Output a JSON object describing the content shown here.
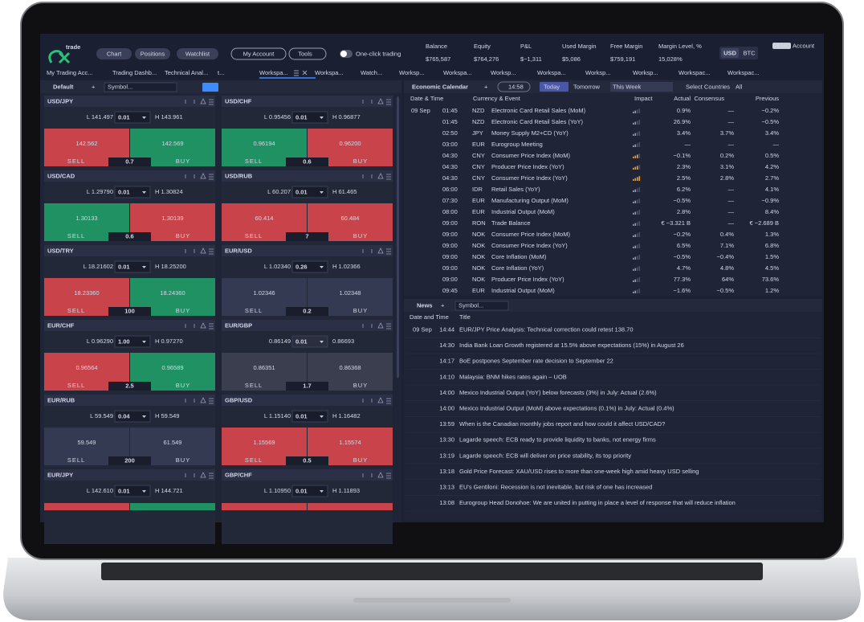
{
  "header": {
    "logo": "trade",
    "nav": [
      "Chart",
      "Positions",
      "Watchlist"
    ],
    "account_menu": "My Account",
    "tools_menu": "Tools",
    "one_click": "One-click trading",
    "stats": [
      {
        "label": "Balance",
        "value": "$765,587",
        "tone": "neutral"
      },
      {
        "label": "Equity",
        "value": "$764,276",
        "tone": "neutral"
      },
      {
        "label": "P&L",
        "value": "$−1,311",
        "tone": "negative"
      },
      {
        "label": "Used Margin",
        "value": "$5,086",
        "tone": "neutral"
      },
      {
        "label": "Free Margin",
        "value": "$759,191",
        "tone": "neutral"
      },
      {
        "label": "Margin Level, %",
        "value": "15,028%",
        "tone": "neutral"
      }
    ],
    "currencies": [
      "USD",
      "BTC"
    ],
    "demo": "DEMO",
    "account": "Account"
  },
  "tabs": [
    "My Trading Acc...",
    "Trading Dashb...",
    "Technical Anal...",
    "t...",
    "Workspa...",
    "Workspa...",
    "Watch...",
    "Worksp...",
    "Workspa...",
    "Worksp...",
    "Workspa...",
    "Worksp...",
    "Worksp...",
    "Workspac...",
    "Workspac..."
  ],
  "active_tab": 4,
  "watchlist": {
    "name": "Default",
    "search": "Symbol...",
    "sell_label": "SELL",
    "buy_label": "BUY",
    "tiles": [
      {
        "pair": "USD/JPY",
        "low": "L 141.497",
        "qty": "0.01",
        "high": "H 143.961",
        "sell": "142.562",
        "buy": "142.569",
        "spread": "0.7",
        "sell_tone": "red",
        "buy_tone": "green"
      },
      {
        "pair": "USD/CHF",
        "low": "L 0.95456",
        "qty": "0.01",
        "high": "H 0.96877",
        "sell": "0.96194",
        "buy": "0.96200",
        "spread": "0.6",
        "sell_tone": "green",
        "buy_tone": "red"
      },
      {
        "pair": "USD/CAD",
        "low": "L 1.29790",
        "qty": "0.01",
        "high": "H 1.30824",
        "sell": "1.30133",
        "buy": "1.30139",
        "spread": "0.6",
        "sell_tone": "green",
        "buy_tone": "red"
      },
      {
        "pair": "USD/RUB",
        "low": "L 60.207",
        "qty": "0.01",
        "high": "H 61.465",
        "sell": "60.414",
        "buy": "60.484",
        "spread": "7",
        "sell_tone": "red",
        "buy_tone": "red"
      },
      {
        "pair": "USD/TRY",
        "low": "L 18.21602",
        "qty": "0.01",
        "high": "H 18.25200",
        "sell": "18.23360",
        "buy": "18.24360",
        "spread": "100",
        "sell_tone": "red",
        "buy_tone": "green"
      },
      {
        "pair": "EUR/USD",
        "low": "L 1.02340",
        "qty": "0.26",
        "high": "H 1.02366",
        "sell": "1.02346",
        "buy": "1.02348",
        "spread": "0.2",
        "sell_tone": "neutral",
        "buy_tone": "neutral"
      },
      {
        "pair": "EUR/CHF",
        "low": "L 0.96290",
        "qty": "1.00",
        "high": "H 0.97270",
        "sell": "0.96564",
        "buy": "0.96589",
        "spread": "2.5",
        "sell_tone": "red",
        "buy_tone": "green"
      },
      {
        "pair": "EUR/GBP",
        "low": "0.86149",
        "qty": "0.01",
        "high": "0.86693",
        "sell": "0.86351",
        "buy": "0.86368",
        "spread": "1.7",
        "sell_tone": "disabled",
        "buy_tone": "disabled"
      },
      {
        "pair": "EUR/RUB",
        "low": "L 59.549",
        "qty": "0.04",
        "high": "H 59.549",
        "sell": "59.549",
        "buy": "61.549",
        "spread": "200",
        "sell_tone": "neutral",
        "buy_tone": "neutral"
      },
      {
        "pair": "GBP/USD",
        "low": "L 1.15140",
        "qty": "0.01",
        "high": "H 1.16482",
        "sell": "1.15569",
        "buy": "1.15574",
        "spread": "0.5",
        "sell_tone": "red",
        "buy_tone": "red"
      },
      {
        "pair": "EUR/JPY",
        "low": "L 142.610",
        "qty": "0.01",
        "high": "H 144.721",
        "sell_tone": "red",
        "buy_tone": "green"
      },
      {
        "pair": "GBP/CHF",
        "low": "L 1.10950",
        "qty": "0.01",
        "high": "H 1.11893",
        "sell_tone": "red",
        "buy_tone": "red"
      }
    ]
  },
  "calendar": {
    "title": "Economic Calendar",
    "clock": "14:58",
    "ranges": [
      "Today",
      "Tomorrow",
      "This Week"
    ],
    "countries_label": "Select Countries",
    "countries_value": "All",
    "columns": [
      "Date & Time",
      "Currency & Event",
      "Impact",
      "Actual",
      "Consensus",
      "Previous"
    ],
    "date": "09 Sep",
    "rows": [
      {
        "time": "01:45",
        "currency": "NZD",
        "event": "Electronic Card Retail Sales (MoM)",
        "impact": "low",
        "actual": "0.9%",
        "tone": "neutral",
        "consensus": "—",
        "previous": "−0.2%"
      },
      {
        "time": "01:45",
        "currency": "NZD",
        "event": "Electronic Card Retail Sales (YoY)",
        "impact": "low",
        "actual": "26.9%",
        "tone": "neutral",
        "consensus": "—",
        "previous": "−0.5%"
      },
      {
        "time": "02:50",
        "currency": "JPY",
        "event": "Money Supply M2+CD (YoY)",
        "impact": "low",
        "actual": "3.4%",
        "tone": "neutral",
        "consensus": "3.7%",
        "previous": "3.4%"
      },
      {
        "time": "03:00",
        "currency": "EUR",
        "event": "Eurogroup Meeting",
        "impact": "low",
        "actual": "—",
        "tone": "neutral",
        "consensus": "—",
        "previous": "—"
      },
      {
        "time": "04:30",
        "currency": "CNY",
        "event": "Consumer Price Index (MoM)",
        "impact": "medium",
        "actual": "−0.1%",
        "tone": "negative",
        "consensus": "0.2%",
        "previous": "0.5%"
      },
      {
        "time": "04:30",
        "currency": "CNY",
        "event": "Producer Price Index (YoY)",
        "impact": "medium",
        "actual": "2.3%",
        "tone": "negative",
        "consensus": "3.1%",
        "previous": "4.2%"
      },
      {
        "time": "04:30",
        "currency": "CNY",
        "event": "Consumer Price Index (YoY)",
        "impact": "high",
        "actual": "2.5%",
        "tone": "negative",
        "consensus": "2.8%",
        "previous": "2.7%"
      },
      {
        "time": "06:00",
        "currency": "IDR",
        "event": "Retail Sales (YoY)",
        "impact": "low",
        "actual": "6.2%",
        "tone": "neutral",
        "consensus": "—",
        "previous": "4.1%"
      },
      {
        "time": "07:30",
        "currency": "EUR",
        "event": "Manufacturing Output (MoM)",
        "impact": "low",
        "actual": "−0.5%",
        "tone": "neutral",
        "consensus": "—",
        "previous": "−0.9%"
      },
      {
        "time": "08:00",
        "currency": "EUR",
        "event": "Industrial Output (MoM)",
        "impact": "low",
        "actual": "2.8%",
        "tone": "neutral",
        "consensus": "—",
        "previous": "8.4%"
      },
      {
        "time": "09:00",
        "currency": "RON",
        "event": "Trade Balance",
        "impact": "low",
        "actual": "€ −3.321 B",
        "tone": "neutral",
        "consensus": "—",
        "previous": "€ −2.689 B"
      },
      {
        "time": "09:00",
        "currency": "NOK",
        "event": "Consumer Price Index (MoM)",
        "impact": "low",
        "actual": "−0.2%",
        "tone": "negative",
        "consensus": "0.4%",
        "previous": "1.3%"
      },
      {
        "time": "09:00",
        "currency": "NOK",
        "event": "Consumer Price Index (YoY)",
        "impact": "low",
        "actual": "6.5%",
        "tone": "negative",
        "consensus": "7.1%",
        "previous": "6.8%"
      },
      {
        "time": "09:00",
        "currency": "NOK",
        "event": "Core Inflation (MoM)",
        "impact": "low",
        "actual": "−0.5%",
        "tone": "negative",
        "consensus": "−0.4%",
        "previous": "1.5%"
      },
      {
        "time": "09:00",
        "currency": "NOK",
        "event": "Core Inflation (YoY)",
        "impact": "low",
        "actual": "4.7%",
        "tone": "negative",
        "consensus": "4.8%",
        "previous": "4.5%"
      },
      {
        "time": "09:00",
        "currency": "NOK",
        "event": "Producer Price Index (YoY)",
        "impact": "low",
        "actual": "77.3%",
        "tone": "positive",
        "consensus": "64%",
        "previous": "73.6%"
      },
      {
        "time": "09:45",
        "currency": "EUR",
        "event": "Industrial Output (MoM)",
        "impact": "low",
        "actual": "−1.6%",
        "tone": "negative",
        "consensus": "−0.5%",
        "previous": "1.2%"
      }
    ]
  },
  "news": {
    "title": "News",
    "search": "Symbol...",
    "columns": [
      "Date and Time",
      "Title"
    ],
    "date": "09 Sep",
    "rows": [
      {
        "time": "14:44",
        "title": "EUR/JPY Price Analysis: Technical correction could retest 138.70"
      },
      {
        "time": "14:30",
        "title": "India Bank Loan Growth registered at 15.5% above expectations (15%) in August 26"
      },
      {
        "time": "14:17",
        "title": "BoE postpones September rate decision to September 22"
      },
      {
        "time": "14:10",
        "title": "Malaysia: BNM hikes rates again – UOB"
      },
      {
        "time": "14:00",
        "title": "Mexico Industrial Output (YoY) below forecasts (3%) in July: Actual (2.6%)"
      },
      {
        "time": "14:00",
        "title": "Mexico Industrial Output (MoM) above expectations (0.1%) in July: Actual (0.4%)"
      },
      {
        "time": "13:59",
        "title": "When is the Canadian monthly jobs report and how could it affect USD/CAD?"
      },
      {
        "time": "13:30",
        "title": "Lagarde speech: ECB ready to provide liquidity to banks, not energy firms"
      },
      {
        "time": "13:19",
        "title": "Lagarde speech: ECB will deliver on price stability, its top priority"
      },
      {
        "time": "13:18",
        "title": "Gold Price Forecast: XAU/USD rises to more than one-week high amid heavy USD selling"
      },
      {
        "time": "13:13",
        "title": "EU's Gentiloni: Recession is not inevitable, but risk of one has increased"
      },
      {
        "time": "13:08",
        "title": "Eurogroup Head Donohoe: We are united in putting in place a level of response that will reduce inflation"
      }
    ]
  }
}
